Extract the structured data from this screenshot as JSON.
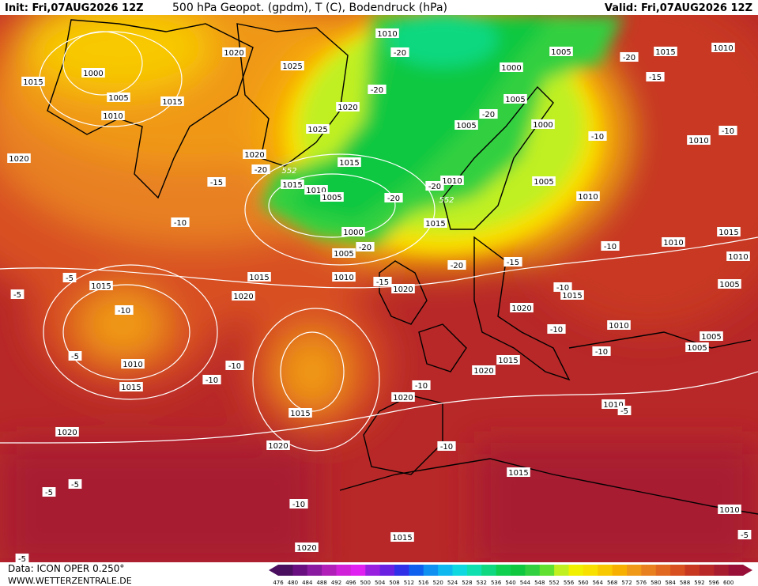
{
  "header": {
    "init": "Init: Fri,07AUG2026 12Z",
    "title": "500 hPa Geopot. (gpdm), T (C), Bodendruck (hPa)",
    "valid": "Valid: Fri,07AUG2026 12Z"
  },
  "footer": {
    "data": "Data: ICON OPER 0.250°",
    "site": "WWW.WETTERZENTRALE.DE"
  },
  "colorbar": {
    "labels": [
      476,
      480,
      484,
      488,
      492,
      496,
      500,
      504,
      508,
      512,
      516,
      520,
      524,
      528,
      532,
      536,
      540,
      544,
      548,
      552,
      556,
      560,
      564,
      568,
      572,
      576,
      580,
      584,
      588,
      592,
      596,
      600
    ],
    "colors": [
      "#4b0f60",
      "#6a0f80",
      "#8a1aa0",
      "#b020b8",
      "#d020d8",
      "#e020f0",
      "#9a20e0",
      "#6a20e0",
      "#3030e8",
      "#1060f0",
      "#1090f0",
      "#10b8f0",
      "#10d8e0",
      "#10e0b0",
      "#10d880",
      "#10d050",
      "#10c840",
      "#30d040",
      "#60e030",
      "#c0f020",
      "#f0f000",
      "#f8e000",
      "#f8c800",
      "#f8b000",
      "#f09818",
      "#e88020",
      "#e06820",
      "#d85020",
      "#c83820",
      "#b82828",
      "#a81c30",
      "#981038"
    ]
  },
  "map_labels": [
    "1010",
    "1005",
    "1015",
    "1010",
    "1020",
    "1000",
    "1025",
    "1015",
    "1005",
    "1015",
    "1010",
    "1000",
    "1005",
    "1020",
    "1025",
    "1005",
    "1000",
    "1010",
    "1020",
    "1015",
    "1020",
    "1015",
    "1010",
    "1005",
    "1010",
    "1005",
    "1010",
    "1000",
    "1005",
    "1015",
    "1010",
    "1015",
    "1010",
    "1015",
    "1015",
    "1010",
    "1020",
    "1020",
    "1015",
    "1005",
    "1020",
    "1010",
    "1005",
    "1005",
    "1010",
    "1015",
    "1020",
    "1015",
    "1020",
    "1010",
    "1015",
    "1020",
    "1020",
    "1015",
    "1010",
    "1020",
    "1015",
    "-20",
    "-20",
    "-15",
    "-20",
    "-20",
    "-10",
    "-10",
    "-15",
    "-20",
    "-20",
    "-20",
    "-10",
    "-20",
    "-20",
    "-15",
    "-10",
    "-5",
    "-5",
    "-15",
    "-10",
    "-10",
    "-5",
    "-10",
    "-10",
    "-10",
    "-10",
    "-10",
    "-5",
    "-10",
    "-5",
    "-5",
    "-10",
    "-5",
    "-5",
    "552",
    "552"
  ]
}
